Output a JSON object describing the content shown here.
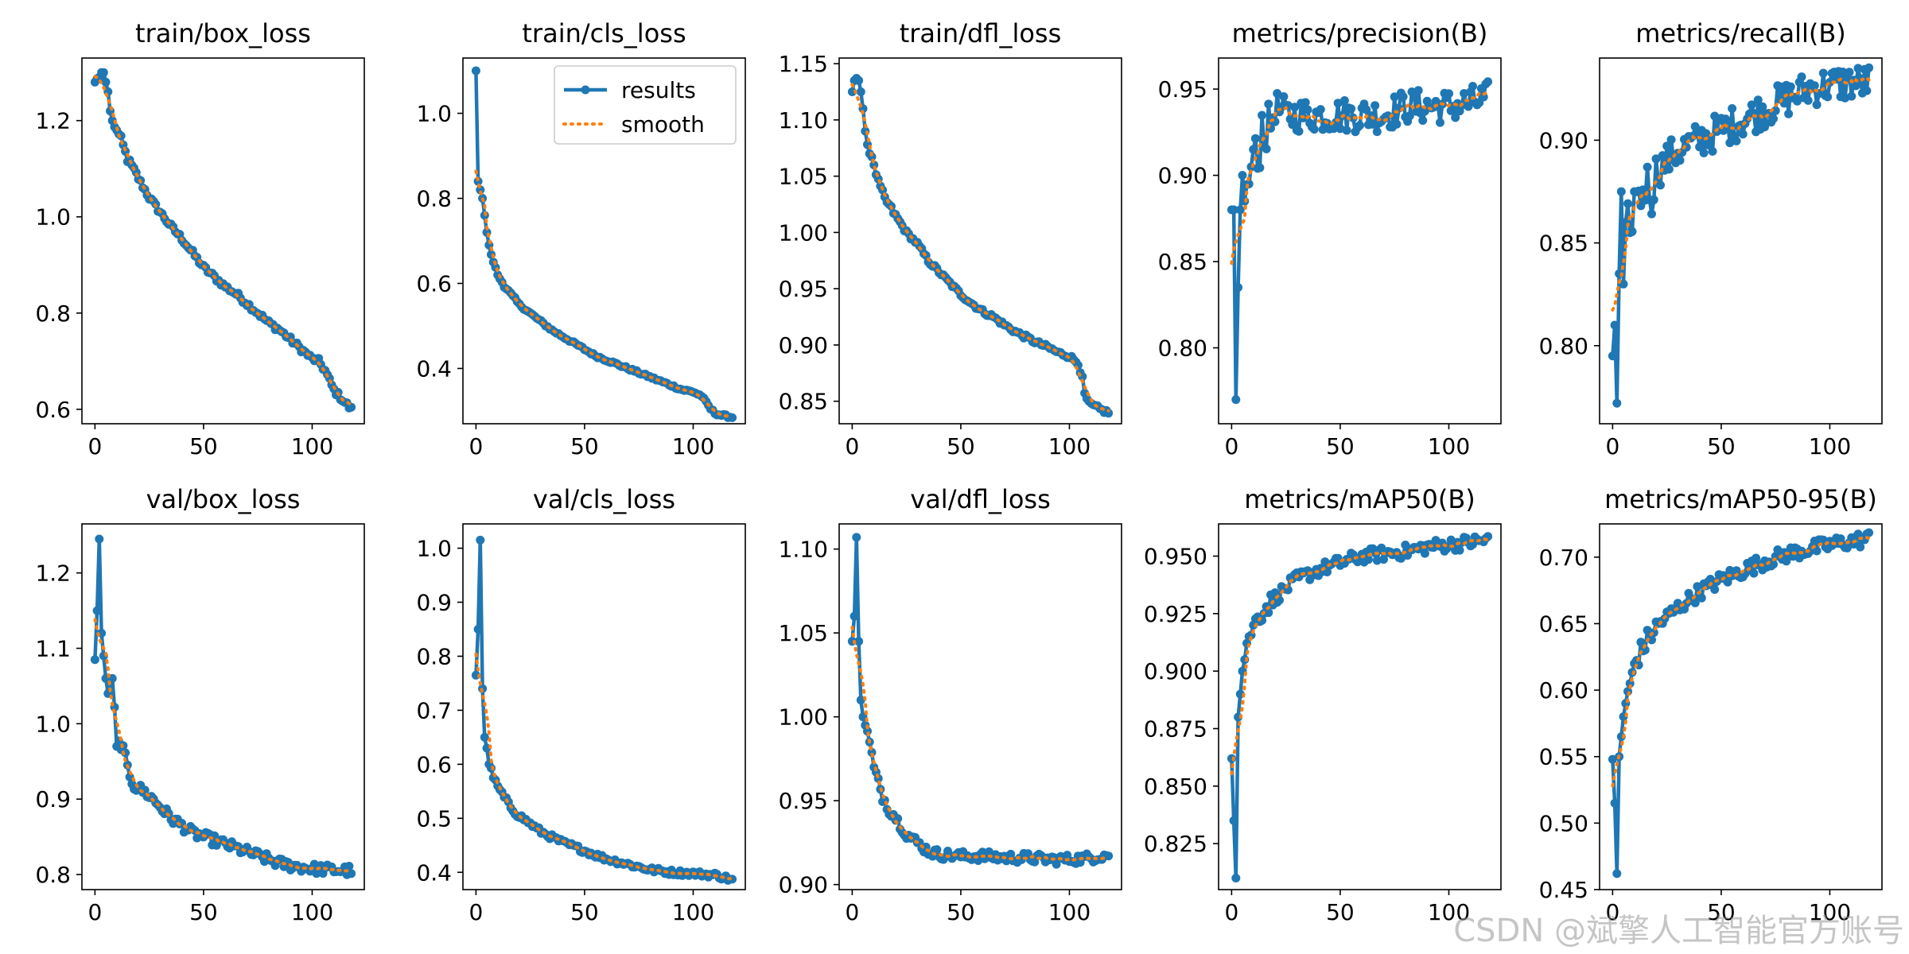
{
  "watermark": "CSDN @斌擎人工智能官方账号",
  "legend": {
    "results": "results",
    "smooth": "smooth"
  },
  "colors": {
    "results": "#1f77b4",
    "smooth": "#ff7f0e"
  },
  "chart_data": [
    {
      "type": "line",
      "title": "train/box_loss",
      "xlim": [
        -6,
        124
      ],
      "ylim": [
        0.57,
        1.33
      ],
      "xticks": [
        0,
        50,
        100
      ],
      "yticks": [
        0.6,
        0.8,
        1.0,
        1.2
      ],
      "keypoints": [
        [
          0,
          1.28
        ],
        [
          2,
          1.29
        ],
        [
          3,
          1.3
        ],
        [
          4,
          1.3
        ],
        [
          5,
          1.28
        ],
        [
          6,
          1.26
        ],
        [
          7,
          1.22
        ],
        [
          8,
          1.2
        ],
        [
          10,
          1.18
        ],
        [
          12,
          1.16
        ],
        [
          15,
          1.12
        ],
        [
          20,
          1.08
        ],
        [
          25,
          1.04
        ],
        [
          30,
          1.01
        ],
        [
          35,
          0.98
        ],
        [
          40,
          0.955
        ],
        [
          45,
          0.925
        ],
        [
          50,
          0.895
        ],
        [
          55,
          0.875
        ],
        [
          60,
          0.855
        ],
        [
          65,
          0.84
        ],
        [
          70,
          0.82
        ],
        [
          75,
          0.8
        ],
        [
          80,
          0.78
        ],
        [
          85,
          0.765
        ],
        [
          90,
          0.745
        ],
        [
          95,
          0.725
        ],
        [
          100,
          0.705
        ],
        [
          103,
          0.7
        ],
        [
          106,
          0.68
        ],
        [
          108,
          0.66
        ],
        [
          110,
          0.64
        ],
        [
          113,
          0.625
        ],
        [
          116,
          0.61
        ],
        [
          118,
          0.6
        ]
      ],
      "noise": 0.006
    },
    {
      "type": "line",
      "title": "train/cls_loss",
      "xlim": [
        -6,
        124
      ],
      "ylim": [
        0.27,
        1.13
      ],
      "xticks": [
        0,
        50,
        100
      ],
      "yticks": [
        0.4,
        0.6,
        0.8,
        1.0
      ],
      "keypoints": [
        [
          0,
          1.1
        ],
        [
          1,
          0.84
        ],
        [
          2,
          0.82
        ],
        [
          3,
          0.8
        ],
        [
          4,
          0.76
        ],
        [
          5,
          0.72
        ],
        [
          6,
          0.69
        ],
        [
          8,
          0.65
        ],
        [
          10,
          0.62
        ],
        [
          13,
          0.595
        ],
        [
          16,
          0.575
        ],
        [
          20,
          0.55
        ],
        [
          25,
          0.53
        ],
        [
          30,
          0.51
        ],
        [
          35,
          0.49
        ],
        [
          40,
          0.475
        ],
        [
          45,
          0.46
        ],
        [
          50,
          0.445
        ],
        [
          55,
          0.43
        ],
        [
          60,
          0.42
        ],
        [
          65,
          0.41
        ],
        [
          70,
          0.4
        ],
        [
          75,
          0.39
        ],
        [
          80,
          0.38
        ],
        [
          85,
          0.37
        ],
        [
          90,
          0.36
        ],
        [
          95,
          0.35
        ],
        [
          100,
          0.345
        ],
        [
          104,
          0.335
        ],
        [
          106,
          0.32
        ],
        [
          108,
          0.305
        ],
        [
          110,
          0.295
        ],
        [
          113,
          0.29
        ],
        [
          118,
          0.285
        ]
      ],
      "noise": 0.003
    },
    {
      "type": "line",
      "title": "train/dfl_loss",
      "xlim": [
        -6,
        124
      ],
      "ylim": [
        0.83,
        1.155
      ],
      "xticks": [
        0,
        50,
        100
      ],
      "yticks": [
        0.85,
        0.9,
        0.95,
        1.0,
        1.05,
        1.1,
        1.15
      ],
      "keypoints": [
        [
          0,
          1.125
        ],
        [
          1,
          1.135
        ],
        [
          2,
          1.137
        ],
        [
          3,
          1.135
        ],
        [
          4,
          1.125
        ],
        [
          5,
          1.11
        ],
        [
          6,
          1.09
        ],
        [
          8,
          1.07
        ],
        [
          10,
          1.06
        ],
        [
          12,
          1.045
        ],
        [
          15,
          1.03
        ],
        [
          20,
          1.015
        ],
        [
          25,
          1.0
        ],
        [
          30,
          0.99
        ],
        [
          35,
          0.975
        ],
        [
          40,
          0.965
        ],
        [
          45,
          0.955
        ],
        [
          50,
          0.945
        ],
        [
          55,
          0.937
        ],
        [
          60,
          0.93
        ],
        [
          65,
          0.925
        ],
        [
          70,
          0.918
        ],
        [
          75,
          0.912
        ],
        [
          80,
          0.907
        ],
        [
          85,
          0.902
        ],
        [
          90,
          0.898
        ],
        [
          95,
          0.893
        ],
        [
          100,
          0.89
        ],
        [
          104,
          0.884
        ],
        [
          106,
          0.87
        ],
        [
          107,
          0.856
        ],
        [
          109,
          0.848
        ],
        [
          112,
          0.845
        ],
        [
          115,
          0.842
        ],
        [
          118,
          0.84
        ]
      ],
      "noise": 0.002
    },
    {
      "type": "line",
      "title": "metrics/precision(B)",
      "xlim": [
        -6,
        124
      ],
      "ylim": [
        0.756,
        0.968
      ],
      "xticks": [
        0,
        50,
        100
      ],
      "yticks": [
        0.8,
        0.85,
        0.9,
        0.95
      ],
      "keypoints": [
        [
          0,
          0.88
        ],
        [
          1,
          0.88
        ],
        [
          2,
          0.77
        ],
        [
          3,
          0.835
        ],
        [
          4,
          0.88
        ],
        [
          5,
          0.9
        ],
        [
          6,
          0.885
        ],
        [
          8,
          0.895
        ],
        [
          10,
          0.915
        ],
        [
          12,
          0.905
        ],
        [
          14,
          0.93
        ],
        [
          16,
          0.925
        ],
        [
          18,
          0.93
        ],
        [
          20,
          0.94
        ],
        [
          25,
          0.935
        ],
        [
          30,
          0.935
        ],
        [
          40,
          0.935
        ],
        [
          50,
          0.935
        ],
        [
          60,
          0.935
        ],
        [
          70,
          0.935
        ],
        [
          80,
          0.94
        ],
        [
          90,
          0.94
        ],
        [
          100,
          0.94
        ],
        [
          110,
          0.942
        ],
        [
          118,
          0.945
        ]
      ],
      "noise": 0.01
    },
    {
      "type": "line",
      "title": "metrics/recall(B)",
      "xlim": [
        -6,
        124
      ],
      "ylim": [
        0.762,
        0.94
      ],
      "xticks": [
        0,
        50,
        100
      ],
      "yticks": [
        0.8,
        0.85,
        0.9
      ],
      "keypoints": [
        [
          0,
          0.795
        ],
        [
          1,
          0.81
        ],
        [
          2,
          0.772
        ],
        [
          3,
          0.835
        ],
        [
          4,
          0.875
        ],
        [
          5,
          0.83
        ],
        [
          6,
          0.86
        ],
        [
          8,
          0.855
        ],
        [
          10,
          0.875
        ],
        [
          12,
          0.87
        ],
        [
          15,
          0.88
        ],
        [
          18,
          0.875
        ],
        [
          20,
          0.885
        ],
        [
          25,
          0.89
        ],
        [
          30,
          0.895
        ],
        [
          40,
          0.9
        ],
        [
          50,
          0.905
        ],
        [
          60,
          0.91
        ],
        [
          70,
          0.915
        ],
        [
          80,
          0.92
        ],
        [
          90,
          0.925
        ],
        [
          100,
          0.927
        ],
        [
          110,
          0.928
        ],
        [
          118,
          0.928
        ]
      ],
      "noise": 0.009
    },
    {
      "type": "line",
      "title": "val/box_loss",
      "xlim": [
        -6,
        124
      ],
      "ylim": [
        0.78,
        1.265
      ],
      "xticks": [
        0,
        50,
        100
      ],
      "yticks": [
        0.8,
        0.9,
        1.0,
        1.1,
        1.2
      ],
      "keypoints": [
        [
          0,
          1.085
        ],
        [
          1,
          1.15
        ],
        [
          2,
          1.245
        ],
        [
          3,
          1.12
        ],
        [
          4,
          1.09
        ],
        [
          5,
          1.06
        ],
        [
          6,
          1.04
        ],
        [
          8,
          1.06
        ],
        [
          10,
          0.97
        ],
        [
          12,
          0.975
        ],
        [
          15,
          0.94
        ],
        [
          18,
          0.92
        ],
        [
          20,
          0.915
        ],
        [
          25,
          0.905
        ],
        [
          30,
          0.89
        ],
        [
          35,
          0.875
        ],
        [
          40,
          0.865
        ],
        [
          45,
          0.855
        ],
        [
          50,
          0.85
        ],
        [
          55,
          0.845
        ],
        [
          60,
          0.84
        ],
        [
          65,
          0.835
        ],
        [
          70,
          0.83
        ],
        [
          75,
          0.825
        ],
        [
          80,
          0.82
        ],
        [
          85,
          0.815
        ],
        [
          90,
          0.812
        ],
        [
          95,
          0.81
        ],
        [
          100,
          0.808
        ],
        [
          110,
          0.806
        ],
        [
          118,
          0.805
        ]
      ],
      "noise": 0.007
    },
    {
      "type": "line",
      "title": "val/cls_loss",
      "xlim": [
        -6,
        124
      ],
      "ylim": [
        0.368,
        1.045
      ],
      "xticks": [
        0,
        50,
        100
      ],
      "yticks": [
        0.4,
        0.5,
        0.6,
        0.7,
        0.8,
        0.9,
        1.0
      ],
      "keypoints": [
        [
          0,
          0.765
        ],
        [
          1,
          0.85
        ],
        [
          2,
          1.015
        ],
        [
          3,
          0.74
        ],
        [
          4,
          0.65
        ],
        [
          5,
          0.63
        ],
        [
          6,
          0.6
        ],
        [
          8,
          0.575
        ],
        [
          10,
          0.56
        ],
        [
          12,
          0.545
        ],
        [
          15,
          0.525
        ],
        [
          20,
          0.505
        ],
        [
          25,
          0.49
        ],
        [
          30,
          0.475
        ],
        [
          35,
          0.465
        ],
        [
          40,
          0.455
        ],
        [
          45,
          0.448
        ],
        [
          50,
          0.44
        ],
        [
          55,
          0.432
        ],
        [
          60,
          0.425
        ],
        [
          65,
          0.42
        ],
        [
          70,
          0.415
        ],
        [
          75,
          0.41
        ],
        [
          80,
          0.405
        ],
        [
          90,
          0.4
        ],
        [
          100,
          0.398
        ],
        [
          110,
          0.395
        ],
        [
          115,
          0.39
        ],
        [
          118,
          0.385
        ]
      ],
      "noise": 0.005
    },
    {
      "type": "line",
      "title": "val/dfl_loss",
      "xlim": [
        -6,
        124
      ],
      "ylim": [
        0.897,
        1.115
      ],
      "xticks": [
        0,
        50,
        100
      ],
      "yticks": [
        0.9,
        0.95,
        1.0,
        1.05,
        1.1
      ],
      "keypoints": [
        [
          0,
          1.045
        ],
        [
          1,
          1.06
        ],
        [
          2,
          1.107
        ],
        [
          3,
          1.045
        ],
        [
          4,
          1.01
        ],
        [
          5,
          1.0
        ],
        [
          6,
          0.995
        ],
        [
          8,
          0.985
        ],
        [
          10,
          0.97
        ],
        [
          12,
          0.96
        ],
        [
          15,
          0.95
        ],
        [
          20,
          0.94
        ],
        [
          25,
          0.93
        ],
        [
          30,
          0.925
        ],
        [
          35,
          0.92
        ],
        [
          40,
          0.918
        ],
        [
          50,
          0.917
        ],
        [
          60,
          0.917
        ],
        [
          70,
          0.916
        ],
        [
          80,
          0.916
        ],
        [
          90,
          0.915
        ],
        [
          100,
          0.915
        ],
        [
          110,
          0.916
        ],
        [
          118,
          0.918
        ]
      ],
      "noise": 0.003
    },
    {
      "type": "line",
      "title": "metrics/mAP50(B)",
      "xlim": [
        -6,
        124
      ],
      "ylim": [
        0.805,
        0.964
      ],
      "xticks": [
        0,
        50,
        100
      ],
      "yticks": [
        0.825,
        0.85,
        0.875,
        0.9,
        0.925,
        0.95
      ],
      "keypoints": [
        [
          0,
          0.862
        ],
        [
          1,
          0.835
        ],
        [
          2,
          0.81
        ],
        [
          3,
          0.88
        ],
        [
          4,
          0.89
        ],
        [
          5,
          0.9
        ],
        [
          6,
          0.905
        ],
        [
          8,
          0.915
        ],
        [
          10,
          0.92
        ],
        [
          15,
          0.927
        ],
        [
          20,
          0.932
        ],
        [
          25,
          0.936
        ],
        [
          30,
          0.94
        ],
        [
          40,
          0.944
        ],
        [
          50,
          0.947
        ],
        [
          60,
          0.95
        ],
        [
          70,
          0.951
        ],
        [
          80,
          0.952
        ],
        [
          90,
          0.954
        ],
        [
          100,
          0.955
        ],
        [
          110,
          0.956
        ],
        [
          118,
          0.957
        ]
      ],
      "noise": 0.003
    },
    {
      "type": "line",
      "title": "metrics/mAP50-95(B)",
      "xlim": [
        -6,
        124
      ],
      "ylim": [
        0.45,
        0.725
      ],
      "xticks": [
        0,
        50,
        100
      ],
      "yticks": [
        0.45,
        0.5,
        0.55,
        0.6,
        0.65,
        0.7
      ],
      "keypoints": [
        [
          0,
          0.548
        ],
        [
          1,
          0.515
        ],
        [
          2,
          0.462
        ],
        [
          3,
          0.55
        ],
        [
          4,
          0.565
        ],
        [
          5,
          0.58
        ],
        [
          6,
          0.59
        ],
        [
          8,
          0.605
        ],
        [
          10,
          0.62
        ],
        [
          15,
          0.635
        ],
        [
          20,
          0.648
        ],
        [
          25,
          0.655
        ],
        [
          30,
          0.662
        ],
        [
          35,
          0.668
        ],
        [
          40,
          0.674
        ],
        [
          50,
          0.683
        ],
        [
          60,
          0.69
        ],
        [
          70,
          0.697
        ],
        [
          80,
          0.702
        ],
        [
          90,
          0.706
        ],
        [
          100,
          0.709
        ],
        [
          110,
          0.712
        ],
        [
          118,
          0.714
        ]
      ],
      "noise": 0.006
    }
  ]
}
